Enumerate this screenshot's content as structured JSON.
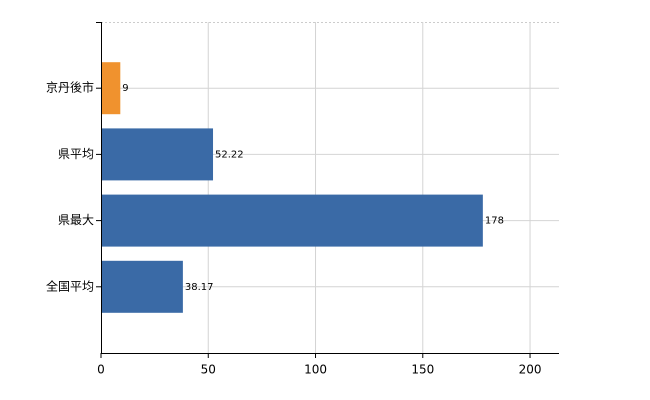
{
  "chart_data": {
    "type": "bar",
    "orientation": "horizontal",
    "categories": [
      "京丹後市",
      "県平均",
      "県最大",
      "全国平均"
    ],
    "values": [
      9,
      52.22,
      178,
      38.17
    ],
    "colors": [
      "#f0922e",
      "#3a6aa6",
      "#3a6aa6",
      "#3a6aa6"
    ],
    "xlim": [
      0,
      213.5
    ],
    "xticks": [
      0,
      50,
      100,
      150,
      200
    ],
    "grid": true
  }
}
